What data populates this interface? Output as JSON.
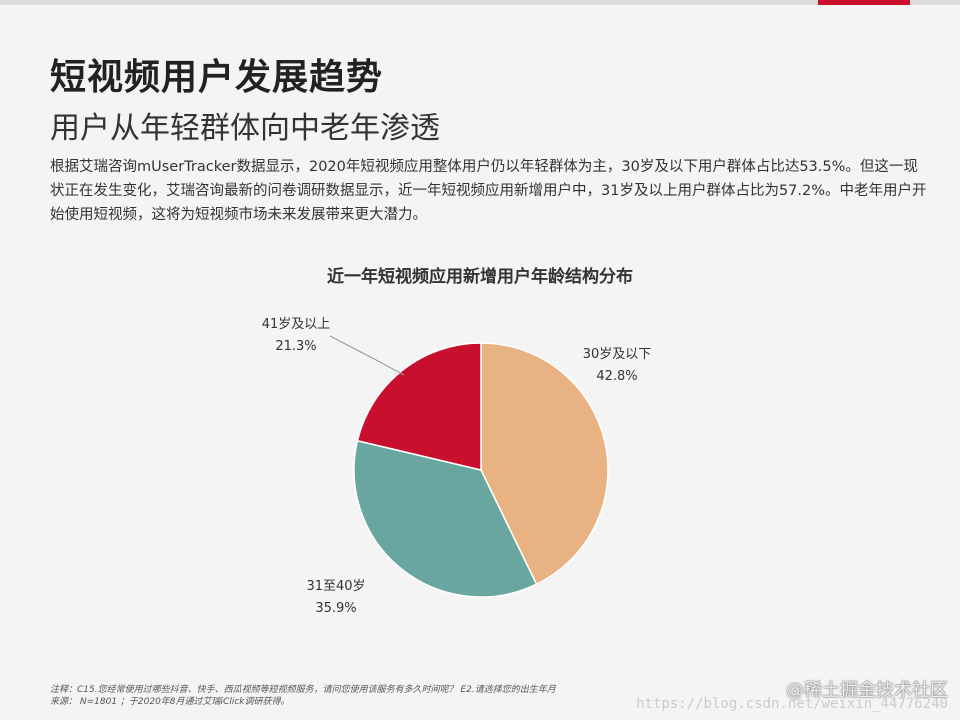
{
  "header": {
    "title": "短视频用户发展趋势",
    "subtitle": "用户从年轻群体向中老年渗透",
    "description": "根据艾瑞咨询mUserTracker数据显示，2020年短视频应用整体用户仍以年轻群体为主，30岁及以下用户群体占比达53.5%。但这一现状正在发生变化，艾瑞咨询最新的问卷调研数据显示，近一年短视频应用新增用户中，31岁及以上用户群体占比为57.2%。中老年用户开始使用短视频，这将为短视频市场未来发展带来更大潜力。"
  },
  "colors": {
    "accent": "#c8102e",
    "slice_under30": "#e8b282",
    "slice_31_40": "#6aa6a0",
    "slice_41plus": "#c8102e"
  },
  "chart_data": {
    "type": "pie",
    "title": "近一年短视频应用新增用户年龄结构分布",
    "slices": [
      {
        "label": "30岁及以下",
        "value": 42.8,
        "display": "42.8%"
      },
      {
        "label": "31至40岁",
        "value": 35.9,
        "display": "35.9%"
      },
      {
        "label": "41岁及以上",
        "value": 21.3,
        "display": "21.3%"
      }
    ]
  },
  "footer": {
    "note_line1": "注释：C15.您经常使用过哪些抖音、快手、西瓜视频等短视频服务，请问您使用该服务有多久时间呢？ E2.请选择您的出生年月",
    "note_line2": "来源：  N=1801 ；于2020年8月通过艾瑞iClick调研获得。",
    "watermark": "@稀土掘金技术社区",
    "url": "https://blog.csdn.net/weixin_44776240"
  }
}
